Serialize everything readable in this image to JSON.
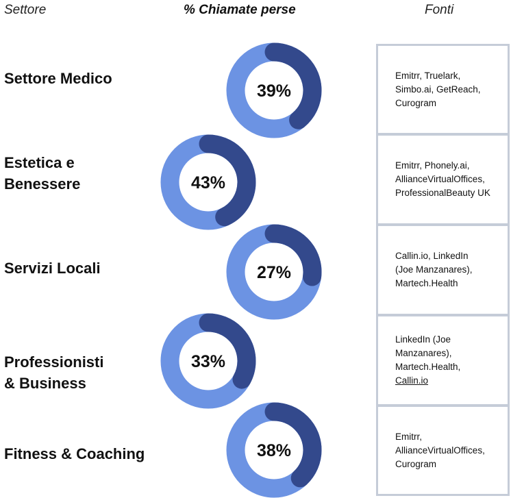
{
  "header": {
    "settore": "Settore",
    "percent": "% Chiamate perse",
    "fonti": "Fonti"
  },
  "colors": {
    "ring_light": "#6c93e3",
    "ring_dark": "#33498c",
    "border": "#c5ccd8"
  },
  "chart_data": {
    "type": "donut",
    "title": "% Chiamate perse",
    "categories": [
      "Settore Medico",
      "Estetica e Benessere",
      "Servizi Locali",
      "Professionisti & Business",
      "Fitness & Coaching"
    ],
    "values": [
      39,
      43,
      27,
      33,
      38
    ],
    "unit": "%"
  },
  "rows": [
    {
      "sector_lines": [
        "Settore Medico"
      ],
      "value": 39,
      "label": "39%",
      "sources": [
        "Emitrr, Truelark,",
        "Simbo.ai, GetReach,",
        "Curogram"
      ]
    },
    {
      "sector_lines": [
        "Estetica e",
        "Benessere"
      ],
      "value": 43,
      "label": "43%",
      "sources": [
        "Emitrr, Phonely.ai,",
        "AllianceVirtualOffices,",
        "ProfessionalBeauty UK"
      ]
    },
    {
      "sector_lines": [
        "Servizi Locali"
      ],
      "value": 27,
      "label": "27%",
      "sources": [
        "Callin.io, LinkedIn",
        "(Joe Manzanares),",
        "Martech.Health"
      ]
    },
    {
      "sector_lines": [
        "Professionisti",
        "& Business"
      ],
      "value": 33,
      "label": "33%",
      "sources": [
        "LinkedIn (Joe",
        "Manzanares),",
        "Martech.Health,",
        "Callin.io"
      ]
    },
    {
      "sector_lines": [
        "Fitness & Coaching"
      ],
      "value": 38,
      "label": "38%",
      "sources": [
        "Emitrr,",
        "AllianceVirtualOffices,",
        "Curogram"
      ]
    }
  ]
}
